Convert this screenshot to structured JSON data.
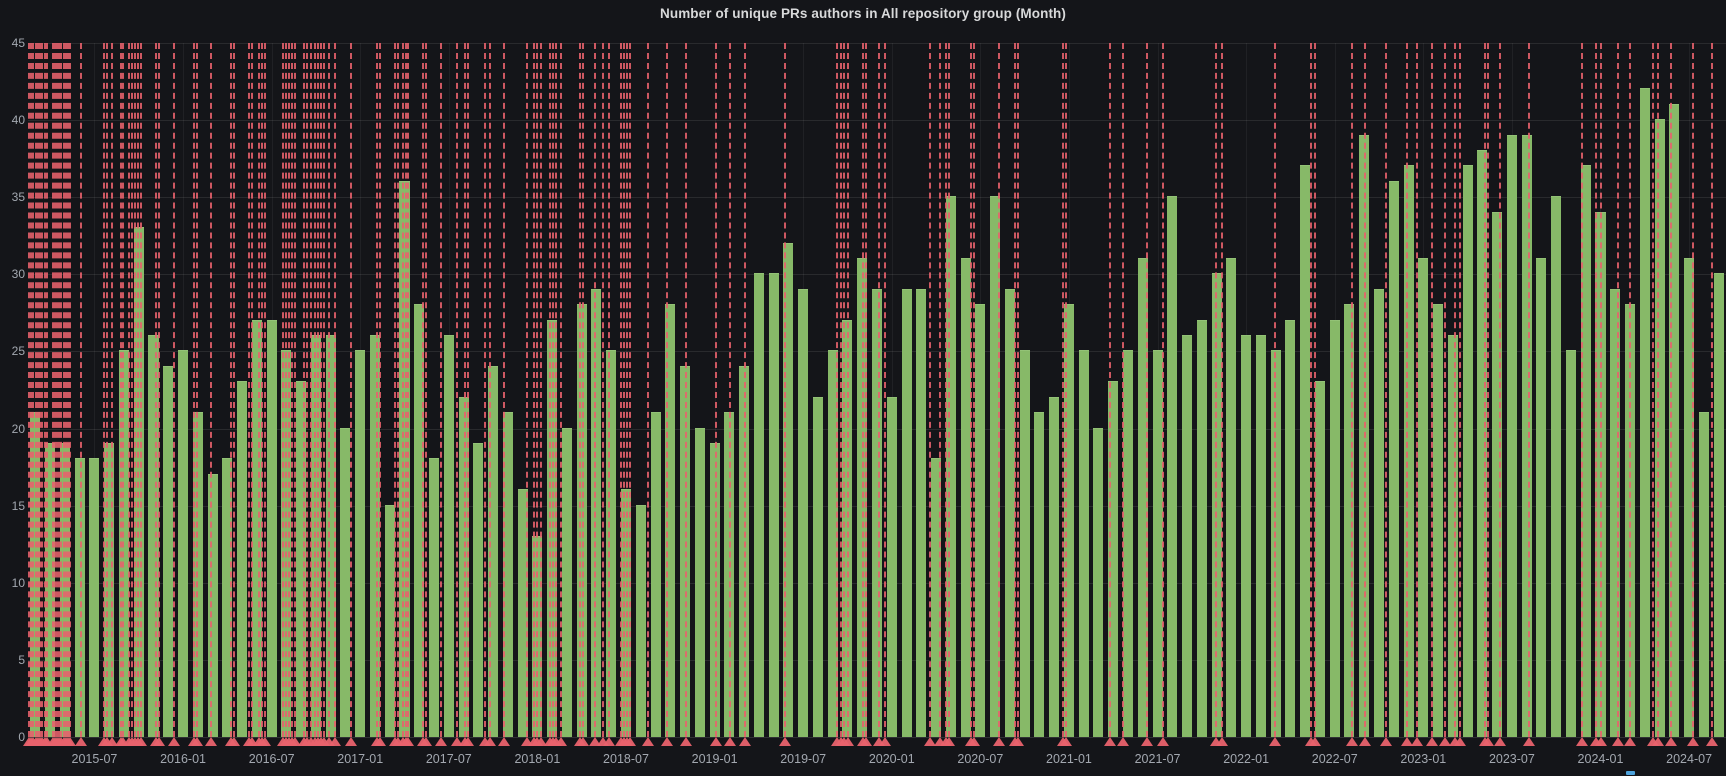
{
  "title": "Number of unique PRs authors in All repository group (Month)",
  "colors": {
    "background": "#141519",
    "bar": "#87b968",
    "annotation": "#e8626d",
    "grid": "#2c2e33",
    "axis_text": "#a3a8b0",
    "title_text": "#d8d9da",
    "legend_caret": "#4da3dd"
  },
  "y_axis": {
    "ticks": [
      0,
      5,
      10,
      15,
      20,
      25,
      30,
      35,
      40,
      45
    ],
    "max": 45
  },
  "x_axis": {
    "labels": [
      "2015-07",
      "2016-01",
      "2016-07",
      "2017-01",
      "2017-07",
      "2018-01",
      "2018-07",
      "2019-01",
      "2019-07",
      "2020-01",
      "2020-07",
      "2021-01",
      "2021-07",
      "2022-01",
      "2022-07",
      "2023-01",
      "2023-07",
      "2024-01",
      "2024-07"
    ],
    "first_label_month_index": 4,
    "label_step_months": 6
  },
  "chart_data": {
    "type": "bar",
    "title": "Number of unique PRs authors in All repository group (Month)",
    "xlabel": "",
    "ylabel": "",
    "ylim": [
      0,
      45
    ],
    "grid": true,
    "categories": [
      "2015-03",
      "2015-04",
      "2015-05",
      "2015-06",
      "2015-07",
      "2015-08",
      "2015-09",
      "2015-10",
      "2015-11",
      "2015-12",
      "2016-01",
      "2016-02",
      "2016-03",
      "2016-04",
      "2016-05",
      "2016-06",
      "2016-07",
      "2016-08",
      "2016-09",
      "2016-10",
      "2016-11",
      "2016-12",
      "2017-01",
      "2017-02",
      "2017-03",
      "2017-04",
      "2017-05",
      "2017-06",
      "2017-07",
      "2017-08",
      "2017-09",
      "2017-10",
      "2017-11",
      "2017-12",
      "2018-01",
      "2018-02",
      "2018-03",
      "2018-04",
      "2018-05",
      "2018-06",
      "2018-07",
      "2018-08",
      "2018-09",
      "2018-10",
      "2018-11",
      "2018-12",
      "2019-01",
      "2019-02",
      "2019-03",
      "2019-04",
      "2019-05",
      "2019-06",
      "2019-07",
      "2019-08",
      "2019-09",
      "2019-10",
      "2019-11",
      "2019-12",
      "2020-01",
      "2020-02",
      "2020-03",
      "2020-04",
      "2020-05",
      "2020-06",
      "2020-07",
      "2020-08",
      "2020-09",
      "2020-10",
      "2020-11",
      "2020-12",
      "2021-01",
      "2021-02",
      "2021-03",
      "2021-04",
      "2021-05",
      "2021-06",
      "2021-07",
      "2021-08",
      "2021-09",
      "2021-10",
      "2021-11",
      "2021-12",
      "2022-01",
      "2022-02",
      "2022-03",
      "2022-04",
      "2022-05",
      "2022-06",
      "2022-07",
      "2022-08",
      "2022-09",
      "2022-10",
      "2022-11",
      "2022-12",
      "2023-01",
      "2023-02",
      "2023-03",
      "2023-04",
      "2023-05",
      "2023-06",
      "2023-07",
      "2023-08",
      "2023-09",
      "2023-10",
      "2023-11",
      "2023-12",
      "2024-01",
      "2024-02",
      "2024-03",
      "2024-04",
      "2024-05",
      "2024-06",
      "2024-07",
      "2024-08",
      "2024-09"
    ],
    "values": [
      21,
      19,
      19,
      18,
      18,
      19,
      25,
      33,
      26,
      24,
      25,
      21,
      17,
      18,
      23,
      27,
      27,
      25,
      23,
      26,
      26,
      20,
      25,
      26,
      15,
      36,
      28,
      18,
      26,
      22,
      19,
      24,
      21,
      16,
      13,
      27,
      20,
      28,
      29,
      25,
      16,
      15,
      21,
      28,
      24,
      20,
      19,
      21,
      24,
      30,
      30,
      32,
      29,
      22,
      25,
      27,
      31,
      29,
      22,
      29,
      29,
      18,
      35,
      31,
      28,
      35,
      29,
      25,
      21,
      22,
      28,
      25,
      20,
      23,
      25,
      31,
      25,
      35,
      26,
      27,
      30,
      31,
      26,
      26,
      25,
      27,
      37,
      23,
      27,
      28,
      39,
      29,
      36,
      37,
      31,
      28,
      26,
      37,
      38,
      34,
      39,
      39,
      31,
      35,
      25,
      37,
      34,
      29,
      28,
      42,
      40,
      41,
      31,
      21,
      30
    ],
    "annotation_positions_months": [
      0,
      0.15,
      0.3,
      0.45,
      0.6,
      0.75,
      0.9,
      1.05,
      1.2,
      1.6,
      1.75,
      1.9,
      2.05,
      2.2,
      2.35,
      2.5,
      2.65,
      2.8,
      3.5,
      5.1,
      5.3,
      5.6,
      6.2,
      6.35,
      6.8,
      7.0,
      7.2,
      7.4,
      7.6,
      8.6,
      8.8,
      9.8,
      11.2,
      11.4,
      12.3,
      13.7,
      13.9,
      14.9,
      15.1,
      15.6,
      15.8,
      16.0,
      17.2,
      17.4,
      17.6,
      17.8,
      18.0,
      18.6,
      18.85,
      19.1,
      19.35,
      19.6,
      19.8,
      20.0,
      20.3,
      20.7,
      21.8,
      23.6,
      23.8,
      24.8,
      25.0,
      25.3,
      25.5,
      25.7,
      26.7,
      26.9,
      27.9,
      29.0,
      29.5,
      29.7,
      30.9,
      31.2,
      32.2,
      33.7,
      34.2,
      34.4,
      34.7,
      35.3,
      35.5,
      35.7,
      36.0,
      37.3,
      37.5,
      38.3,
      38.9,
      39.3,
      40.1,
      40.3,
      40.5,
      40.7,
      41.9,
      43.2,
      44.5,
      46.5,
      47.5,
      48.5,
      51.2,
      54.7,
      55.0,
      55.2,
      55.5,
      56.5,
      56.7,
      57.6,
      58.0,
      61.0,
      61.7,
      62.1,
      62.3,
      63.8,
      64.0,
      65.7,
      66.8,
      67.0,
      70.0,
      70.2,
      73.2,
      74.1,
      75.7,
      76.8,
      80.4,
      80.8,
      84.4,
      86.8,
      87.1,
      89.6,
      90.5,
      91.9,
      93.3,
      94.0,
      95.0,
      95.9,
      96.6,
      96.9,
      98.6,
      98.8,
      99.6,
      101.6,
      105.2,
      106.1,
      106.5,
      107.6,
      108.4,
      110.0,
      110.3,
      111.2,
      112.7,
      114.0
    ]
  }
}
